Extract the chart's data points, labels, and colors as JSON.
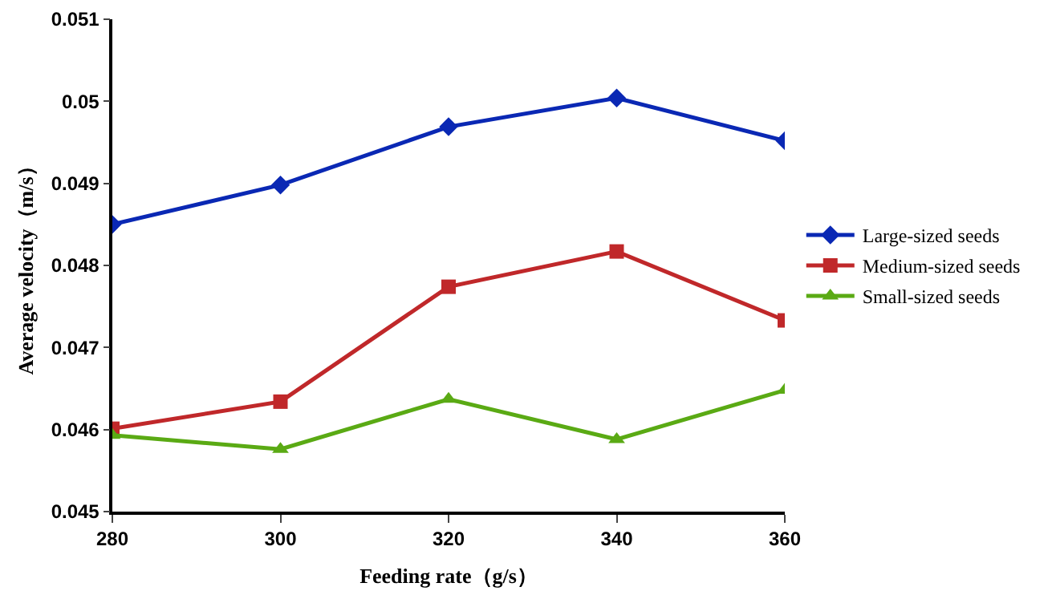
{
  "chart_data": {
    "type": "line",
    "xlabel": "Feeding rate（g/s）",
    "ylabel": "Average velocity（m/s）",
    "x": [
      280,
      300,
      320,
      340,
      360
    ],
    "xlim": [
      280,
      360
    ],
    "xticks": [
      280,
      300,
      320,
      340,
      360
    ],
    "ylim": [
      0.045,
      0.051
    ],
    "yticks": [
      0.045,
      0.046,
      0.047,
      0.048,
      0.049,
      {
        "value": 0.05,
        "label": "0.05"
      },
      0.051
    ],
    "grid": false,
    "legend": "right",
    "line_style": "solid",
    "series": [
      {
        "name": "Large-sized seeds",
        "color": "#0a28b4",
        "marker": "diamond",
        "values": [
          0.0485,
          0.04898,
          0.04969,
          0.05004,
          0.04952
        ]
      },
      {
        "name": "Medium-sized seeds",
        "color": "#c0282a",
        "marker": "square",
        "values": [
          0.04601,
          0.04634,
          0.04774,
          0.04817,
          0.04733
        ]
      },
      {
        "name": "Small-sized seeds",
        "color": "#5aaa14",
        "marker": "triangle",
        "values": [
          0.04593,
          0.04576,
          0.04637,
          0.04588,
          0.04648
        ]
      }
    ]
  }
}
